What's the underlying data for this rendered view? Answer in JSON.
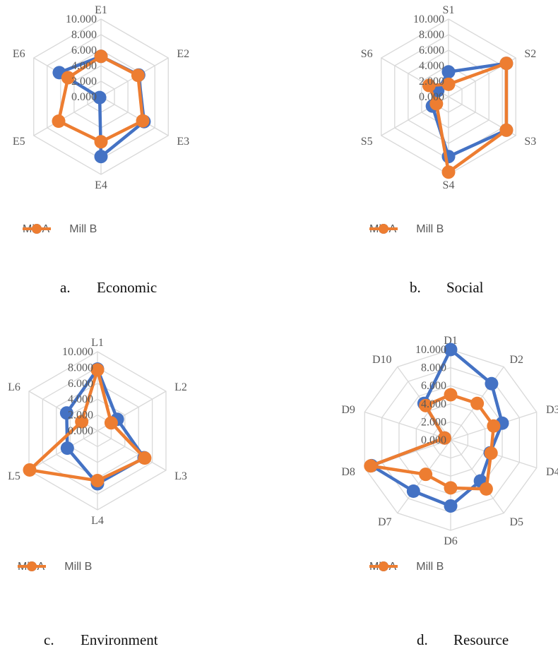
{
  "colors": {
    "mill_a": "#4472C4",
    "mill_b": "#ED7D31",
    "grid": "#D9D9D9",
    "text": "#595959"
  },
  "legend": [
    "Mill A",
    "Mill B"
  ],
  "chart_data": [
    {
      "type": "radar",
      "caption_letter": "a.",
      "caption_text": "Economic",
      "categories": [
        "E1",
        "E2",
        "E3",
        "E4",
        "E5",
        "E6"
      ],
      "rlim": [
        0,
        10
      ],
      "ticks": [
        "0.000",
        "2.000",
        "4.000",
        "6.000",
        "8.000",
        "10.000"
      ],
      "series": [
        {
          "name": "Mill A",
          "values": [
            5.2,
            5.6,
            6.4,
            7.7,
            0.2,
            6.2
          ]
        },
        {
          "name": "Mill B",
          "values": [
            5.2,
            5.5,
            6.2,
            5.8,
            6.3,
            4.9
          ]
        }
      ]
    },
    {
      "type": "radar",
      "caption_letter": "b.",
      "caption_text": "Social",
      "categories": [
        "S1",
        "S2",
        "S3",
        "S4",
        "S5",
        "S6"
      ],
      "rlim": [
        0,
        10
      ],
      "ticks": [
        "0.000",
        "2.000",
        "4.000",
        "6.000",
        "8.000",
        "10.000"
      ],
      "series": [
        {
          "name": "Mill A",
          "values": [
            3.2,
            8.6,
            8.6,
            7.7,
            2.4,
            1.6
          ]
        },
        {
          "name": "Mill B",
          "values": [
            1.6,
            8.6,
            8.6,
            9.7,
            1.8,
            2.9
          ]
        }
      ]
    },
    {
      "type": "radar",
      "caption_letter": "c.",
      "caption_text": "Environment",
      "categories": [
        "L1",
        "L2",
        "L3",
        "L4",
        "L5",
        "L6"
      ],
      "rlim": [
        0,
        10
      ],
      "ticks": [
        "0.000",
        "2.000",
        "4.000",
        "6.000",
        "8.000",
        "10.000"
      ],
      "series": [
        {
          "name": "Mill A",
          "values": [
            7.8,
            2.9,
            6.8,
            6.7,
            4.4,
            4.5
          ]
        },
        {
          "name": "Mill B",
          "values": [
            7.7,
            2.0,
            6.9,
            6.3,
            9.9,
            2.3
          ]
        }
      ]
    },
    {
      "type": "radar",
      "caption_letter": "d.",
      "caption_text": "Resource",
      "categories": [
        "D1",
        "D2",
        "D3",
        "D4",
        "D5",
        "D6",
        "D7",
        "D8",
        "D9",
        "D10"
      ],
      "rlim": [
        0,
        10
      ],
      "ticks": [
        "0.000",
        "2.000",
        "4.000",
        "6.000",
        "8.000",
        "10.000"
      ],
      "series": [
        {
          "name": "Mill A",
          "values": [
            10.0,
            7.7,
            6.0,
            4.6,
            5.6,
            7.3,
            7.0,
            9.2,
            0.7,
            5.0
          ]
        },
        {
          "name": "Mill B",
          "values": [
            5.0,
            5.0,
            5.0,
            4.7,
            6.7,
            5.3,
            4.7,
            9.3,
            0.7,
            4.7
          ]
        }
      ]
    }
  ]
}
